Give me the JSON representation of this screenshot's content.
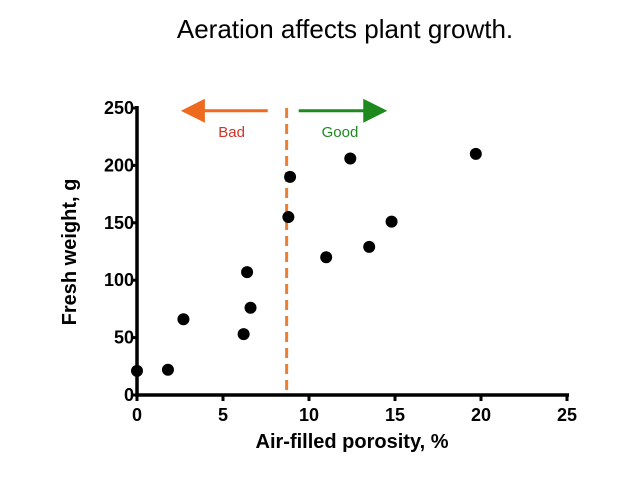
{
  "chart_data": {
    "type": "scatter",
    "title": "Aeration affects plant growth.",
    "xlabel": "Air-filled porosity, %",
    "ylabel": "Fresh weight, g",
    "xlim": [
      0,
      25
    ],
    "ylim": [
      0,
      250
    ],
    "xticks": [
      "0",
      "5",
      "10",
      "15",
      "20",
      "25"
    ],
    "yticks": [
      "0",
      "50",
      "100",
      "150",
      "200",
      "250"
    ],
    "grid": false,
    "points": [
      {
        "x": 0,
        "y": 21
      },
      {
        "x": 1.8,
        "y": 22
      },
      {
        "x": 2.7,
        "y": 66
      },
      {
        "x": 6.2,
        "y": 53
      },
      {
        "x": 6.4,
        "y": 107
      },
      {
        "x": 6.6,
        "y": 76
      },
      {
        "x": 8.9,
        "y": 190
      },
      {
        "x": 8.8,
        "y": 155
      },
      {
        "x": 11.0,
        "y": 120
      },
      {
        "x": 12.4,
        "y": 206
      },
      {
        "x": 13.5,
        "y": 129
      },
      {
        "x": 14.8,
        "y": 151
      },
      {
        "x": 19.7,
        "y": 210
      }
    ],
    "threshold_x": 8.7,
    "annotations": {
      "bad": {
        "label": "Bad",
        "color": "#d0342c",
        "arrow_color": "#ed6a1f"
      },
      "good": {
        "label": "Good",
        "color": "#1e8a1e",
        "arrow_color": "#1e8a1e"
      }
    },
    "colors": {
      "points": "#000000",
      "threshold": "#ed7d31"
    }
  }
}
